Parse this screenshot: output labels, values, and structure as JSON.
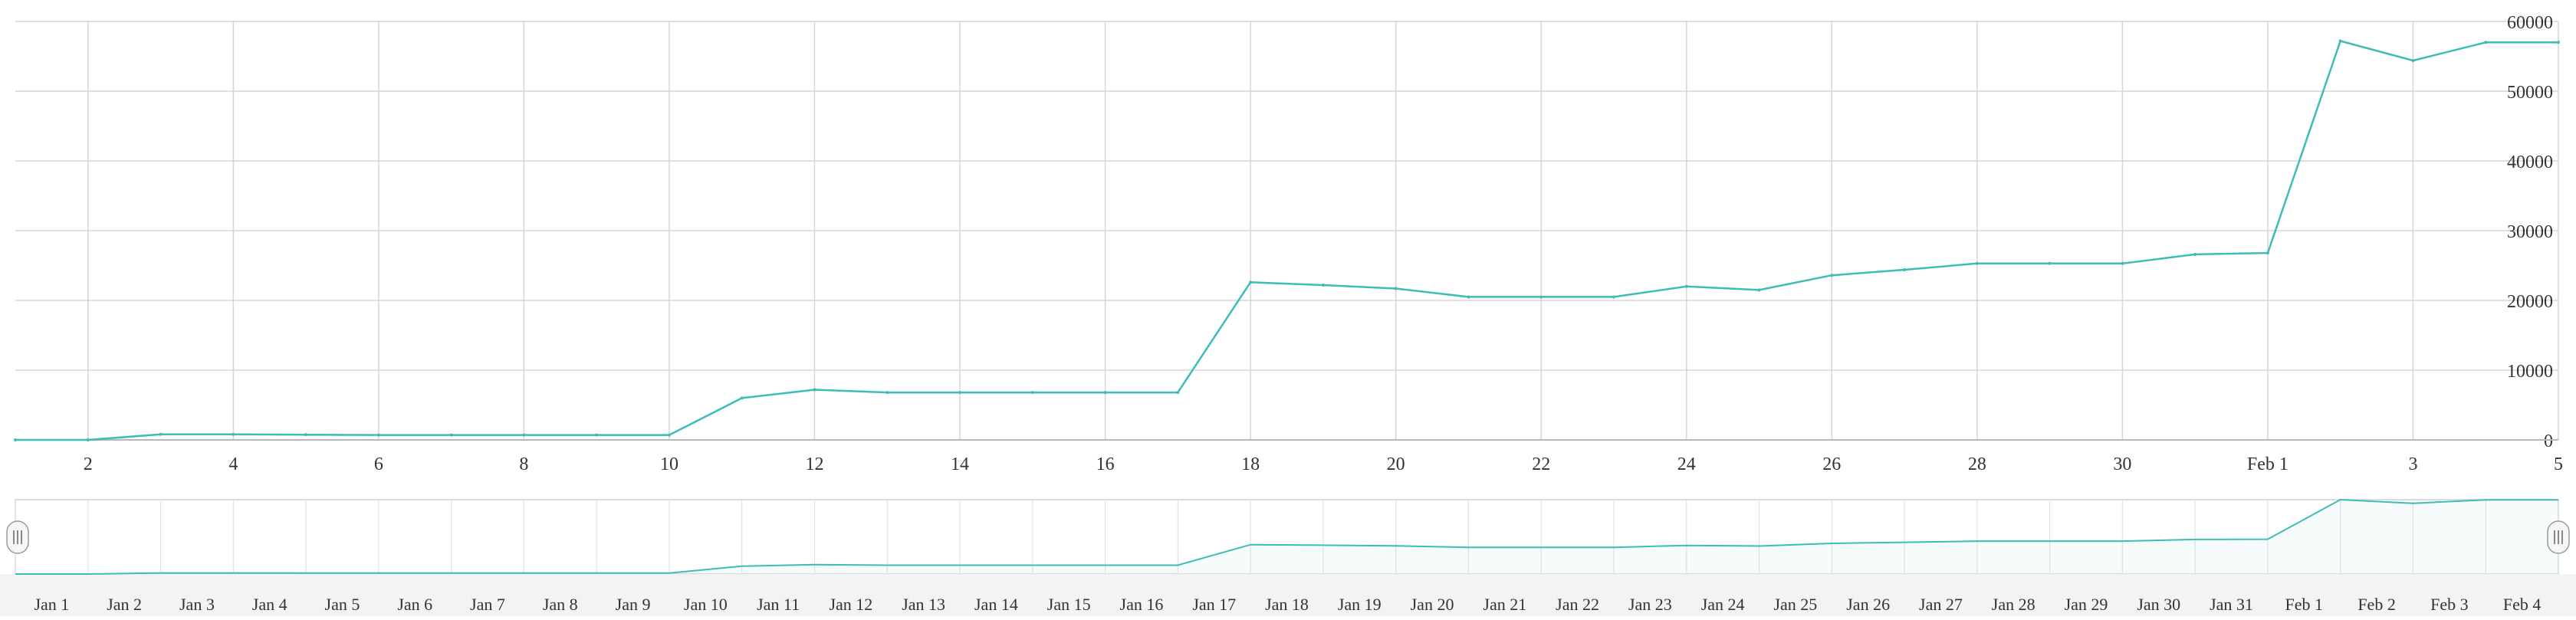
{
  "chart_data": [
    {
      "type": "line",
      "x_label_every": 2,
      "x": [
        "Jan 1",
        "Jan 2",
        "Jan 3",
        "Jan 4",
        "Jan 5",
        "Jan 6",
        "Jan 7",
        "Jan 8",
        "Jan 9",
        "Jan 10",
        "Jan 11",
        "Jan 12",
        "Jan 13",
        "Jan 14",
        "Jan 15",
        "Jan 16",
        "Jan 17",
        "Jan 18",
        "Jan 19",
        "Jan 20",
        "Jan 21",
        "Jan 22",
        "Jan 23",
        "Jan 24",
        "Jan 25",
        "Jan 26",
        "Jan 27",
        "Jan 28",
        "Jan 29",
        "Jan 30",
        "Jan 31",
        "Feb 1",
        "Feb 2",
        "Feb 3",
        "Feb 4",
        "Feb 5"
      ],
      "x_tick_labels": [
        "2",
        "4",
        "6",
        "8",
        "10",
        "12",
        "14",
        "16",
        "18",
        "20",
        "22",
        "24",
        "26",
        "28",
        "30",
        "Feb 1",
        "3",
        "5"
      ],
      "series": [
        {
          "values": [
            0,
            0,
            800,
            800,
            750,
            700,
            700,
            700,
            700,
            700,
            6000,
            7200,
            6800,
            6800,
            6800,
            6800,
            6800,
            22600,
            22200,
            21700,
            20500,
            20500,
            20500,
            22000,
            21500,
            23600,
            24400,
            25300,
            25300,
            25300,
            26600,
            26800,
            57200,
            54400,
            57000,
            57000
          ],
          "color": "#3dbdb6"
        }
      ],
      "ylim": [
        0,
        60000
      ],
      "y_ticks": [
        0,
        10000,
        20000,
        30000,
        40000,
        50000,
        60000
      ],
      "y_axis_position": "right",
      "grid": true,
      "title": "",
      "xlabel": "",
      "ylabel": ""
    },
    {
      "type": "area",
      "x": [
        "Jan 1",
        "Jan 2",
        "Jan 3",
        "Jan 4",
        "Jan 5",
        "Jan 6",
        "Jan 7",
        "Jan 8",
        "Jan 9",
        "Jan 10",
        "Jan 11",
        "Jan 12",
        "Jan 13",
        "Jan 14",
        "Jan 15",
        "Jan 16",
        "Jan 17",
        "Jan 18",
        "Jan 19",
        "Jan 20",
        "Jan 21",
        "Jan 22",
        "Jan 23",
        "Jan 24",
        "Jan 25",
        "Jan 26",
        "Jan 27",
        "Jan 28",
        "Jan 29",
        "Jan 30",
        "Jan 31",
        "Feb 1",
        "Feb 2",
        "Feb 3",
        "Feb 4",
        "Feb 5"
      ],
      "x_tick_labels": [
        "Jan 1",
        "Jan 2",
        "Jan 3",
        "Jan 4",
        "Jan 5",
        "Jan 6",
        "Jan 7",
        "Jan 8",
        "Jan 9",
        "Jan 10",
        "Jan 11",
        "Jan 12",
        "Jan 13",
        "Jan 14",
        "Jan 15",
        "Jan 16",
        "Jan 17",
        "Jan 18",
        "Jan 19",
        "Jan 20",
        "Jan 21",
        "Jan 22",
        "Jan 23",
        "Jan 24",
        "Jan 25",
        "Jan 26",
        "Jan 27",
        "Jan 28",
        "Jan 29",
        "Jan 30",
        "Jan 31",
        "Feb 1",
        "Feb 2",
        "Feb 3",
        "Feb 4"
      ],
      "series": [
        {
          "values": [
            0,
            0,
            800,
            800,
            750,
            700,
            700,
            700,
            700,
            700,
            6000,
            7200,
            6800,
            6800,
            6800,
            6800,
            6800,
            22600,
            22200,
            21700,
            20500,
            20500,
            20500,
            22000,
            21500,
            23600,
            24400,
            25300,
            25300,
            25300,
            26600,
            26800,
            57200,
            54400,
            57000,
            57000
          ],
          "color": "#3dbdb6"
        }
      ],
      "role": "range-navigator",
      "selection": [
        "Jan 1",
        "Feb 5"
      ],
      "handle_icon": "grip-lines-icon",
      "grid": true
    }
  ]
}
